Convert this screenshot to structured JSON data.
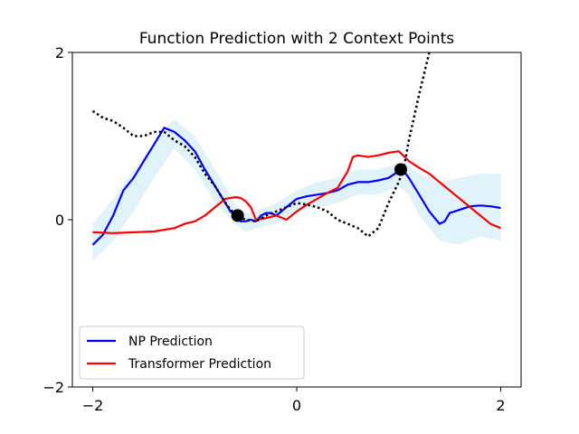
{
  "chart_data": {
    "type": "line",
    "title": "Function Prediction with 2 Context Points",
    "xlabel": "",
    "ylabel": "",
    "xlim": [
      -2.2,
      2.2
    ],
    "ylim": [
      -2,
      2
    ],
    "xticks": [
      -2,
      0,
      2
    ],
    "xtick_labels": [
      "−2",
      "0",
      "2"
    ],
    "yticks": [
      -2,
      0,
      2
    ],
    "ytick_labels": [
      "−2",
      "0",
      "2"
    ],
    "grid": false,
    "legend_position": "lower-left",
    "series": [
      {
        "name": "NP Prediction",
        "color": "#0000ff",
        "style": "solid",
        "x": [
          -2.0,
          -1.9,
          -1.8,
          -1.7,
          -1.6,
          -1.5,
          -1.4,
          -1.3,
          -1.2,
          -1.15,
          -1.1,
          -1.0,
          -0.9,
          -0.8,
          -0.7,
          -0.65,
          -0.6,
          -0.55,
          -0.5,
          -0.45,
          -0.4,
          -0.35,
          -0.3,
          -0.25,
          -0.2,
          -0.1,
          0.0,
          0.1,
          0.2,
          0.3,
          0.4,
          0.5,
          0.6,
          0.7,
          0.8,
          0.9,
          1.0,
          1.05,
          1.1,
          1.2,
          1.3,
          1.4,
          1.45,
          1.5,
          1.6,
          1.7,
          1.8,
          1.9,
          2.0
        ],
        "y": [
          -0.3,
          -0.18,
          0.05,
          0.35,
          0.5,
          0.7,
          0.9,
          1.1,
          1.05,
          1.0,
          0.95,
          0.82,
          0.6,
          0.4,
          0.2,
          0.1,
          0.05,
          -0.02,
          -0.02,
          0.0,
          -0.02,
          0.05,
          0.08,
          0.08,
          0.05,
          0.15,
          0.25,
          0.28,
          0.3,
          0.32,
          0.35,
          0.42,
          0.45,
          0.45,
          0.47,
          0.5,
          0.58,
          0.58,
          0.5,
          0.3,
          0.1,
          -0.05,
          -0.02,
          0.08,
          0.12,
          0.16,
          0.17,
          0.16,
          0.14
        ]
      },
      {
        "name": "Transformer Prediction",
        "color": "#ff0000",
        "style": "solid",
        "x": [
          -2.0,
          -1.8,
          -1.6,
          -1.4,
          -1.2,
          -1.1,
          -1.0,
          -0.9,
          -0.8,
          -0.7,
          -0.6,
          -0.55,
          -0.5,
          -0.45,
          -0.4,
          -0.3,
          -0.2,
          -0.1,
          0.0,
          0.1,
          0.2,
          0.3,
          0.4,
          0.5,
          0.55,
          0.6,
          0.7,
          0.8,
          0.9,
          1.0,
          1.05,
          1.1,
          1.2,
          1.3,
          1.4,
          1.5,
          1.6,
          1.7,
          1.8,
          1.9,
          2.0
        ],
        "y": [
          -0.15,
          -0.16,
          -0.15,
          -0.14,
          -0.1,
          -0.05,
          -0.02,
          0.05,
          0.15,
          0.25,
          0.27,
          0.26,
          0.22,
          0.15,
          0.0,
          0.02,
          0.05,
          0.0,
          0.1,
          0.18,
          0.25,
          0.32,
          0.38,
          0.58,
          0.75,
          0.77,
          0.75,
          0.77,
          0.8,
          0.82,
          0.76,
          0.7,
          0.62,
          0.55,
          0.45,
          0.35,
          0.25,
          0.15,
          0.05,
          -0.05,
          -0.1
        ]
      },
      {
        "name": "",
        "color": "#000000",
        "style": "dotted",
        "x": [
          -2.0,
          -1.9,
          -1.8,
          -1.7,
          -1.6,
          -1.5,
          -1.4,
          -1.3,
          -1.2,
          -1.1,
          -1.0,
          -0.9,
          -0.8,
          -0.7,
          -0.6,
          -0.5,
          -0.4,
          -0.3,
          -0.2,
          -0.1,
          0.0,
          0.1,
          0.2,
          0.3,
          0.4,
          0.5,
          0.6,
          0.7,
          0.8,
          0.9,
          1.0,
          1.05,
          1.1,
          1.2,
          1.3
        ],
        "y": [
          1.3,
          1.22,
          1.18,
          1.1,
          1.0,
          1.0,
          1.05,
          1.05,
          0.95,
          0.88,
          0.75,
          0.55,
          0.4,
          0.2,
          0.05,
          0.0,
          -0.02,
          0.05,
          0.1,
          0.15,
          0.2,
          0.18,
          0.15,
          0.1,
          0.0,
          -0.05,
          -0.1,
          -0.2,
          -0.1,
          0.2,
          0.45,
          0.62,
          0.95,
          1.5,
          2.0
        ]
      }
    ],
    "uncertainty_band": {
      "color": "#87ceeb",
      "x": [
        -2.0,
        -1.8,
        -1.6,
        -1.4,
        -1.2,
        -1.0,
        -0.8,
        -0.6,
        -0.5,
        -0.4,
        -0.2,
        0.0,
        0.2,
        0.4,
        0.6,
        0.8,
        1.0,
        1.1,
        1.2,
        1.4,
        1.6,
        1.8,
        2.0
      ],
      "upper": [
        -0.05,
        0.25,
        0.6,
        0.9,
        1.2,
        1.0,
        0.6,
        0.18,
        0.08,
        0.1,
        0.2,
        0.35,
        0.45,
        0.5,
        0.6,
        0.6,
        0.68,
        0.65,
        0.55,
        0.45,
        0.5,
        0.55,
        0.55
      ],
      "lower": [
        -0.5,
        -0.25,
        0.1,
        0.5,
        0.85,
        0.6,
        0.2,
        -0.05,
        -0.15,
        -0.1,
        -0.05,
        0.1,
        0.15,
        0.2,
        0.3,
        0.3,
        0.4,
        0.3,
        0.05,
        -0.25,
        -0.3,
        -0.2,
        -0.25
      ]
    },
    "context_points": {
      "x": [
        -0.58,
        1.02
      ],
      "y": [
        0.05,
        0.6
      ],
      "color": "#000000"
    }
  }
}
